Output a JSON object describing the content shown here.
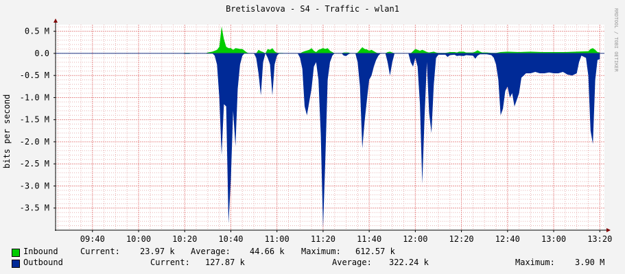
{
  "chart_data": {
    "type": "area",
    "title": "Bretislavova - S4 - Traffic - wlan1",
    "ylabel": "bits per second",
    "watermark": "RRDTOOL / TOBI OETIKER",
    "ylim": [
      -4.0,
      0.65
    ],
    "y_unit": "M",
    "y_ticks": [
      {
        "v": 0.5,
        "label": "0.5 M"
      },
      {
        "v": 0.0,
        "label": "0.0"
      },
      {
        "v": -0.5,
        "label": "-0.5 M"
      },
      {
        "v": -1.0,
        "label": "-1.0 M"
      },
      {
        "v": -1.5,
        "label": "-1.5 M"
      },
      {
        "v": -2.0,
        "label": "-2.0 M"
      },
      {
        "v": -2.5,
        "label": "-2.5 M"
      },
      {
        "v": -3.0,
        "label": "-3.0 M"
      },
      {
        "v": -3.5,
        "label": "-3.5 M"
      }
    ],
    "x_ticks": [
      "09:40",
      "10:00",
      "10:20",
      "10:40",
      "11:00",
      "11:20",
      "11:40",
      "12:00",
      "12:20",
      "12:40",
      "13:00",
      "13:20"
    ],
    "grid": true,
    "legend": "bottom",
    "colors": {
      "inbound": "#00cc00",
      "outbound": "#002a97",
      "grid": "#e8b0b0",
      "axis": "#000000",
      "plot_bg": "#ffffff"
    },
    "series": [
      {
        "name": "Inbound",
        "stats": {
          "current_label": "Current:",
          "current": "23.97 k",
          "average_label": "Average:",
          "average": "44.66 k",
          "maximum_label": "Maximum:",
          "maximum": "612.57 k"
        },
        "points": [
          [
            "10:19",
            0
          ],
          [
            "10:20",
            0.01
          ],
          [
            "10:22",
            0.01
          ],
          [
            "10:23",
            0
          ],
          [
            "10:29",
            0
          ],
          [
            "10:30",
            0.02
          ],
          [
            "10:32",
            0.04
          ],
          [
            "10:34",
            0.08
          ],
          [
            "10:35",
            0.15
          ],
          [
            "10:36",
            0.61
          ],
          [
            "10:37",
            0.32
          ],
          [
            "10:38",
            0.15
          ],
          [
            "10:39",
            0.12
          ],
          [
            "10:40",
            0.12
          ],
          [
            "10:41",
            0.08
          ],
          [
            "10:42",
            0.12
          ],
          [
            "10:43",
            0.11
          ],
          [
            "10:44",
            0.1
          ],
          [
            "10:45",
            0.1
          ],
          [
            "10:46",
            0.06
          ],
          [
            "10:47",
            0.02
          ],
          [
            "10:48",
            0
          ],
          [
            "10:51",
            0
          ],
          [
            "10:52",
            0.08
          ],
          [
            "10:53",
            0.05
          ],
          [
            "10:54",
            0.03
          ],
          [
            "10:55",
            0
          ],
          [
            "10:56",
            0.1
          ],
          [
            "10:57",
            0.08
          ],
          [
            "10:58",
            0.12
          ],
          [
            "10:59",
            0.05
          ],
          [
            "11:00",
            0.01
          ],
          [
            "11:02",
            0.01
          ],
          [
            "11:05",
            0
          ],
          [
            "11:10",
            0
          ],
          [
            "11:11",
            0.03
          ],
          [
            "11:12",
            0.05
          ],
          [
            "11:14",
            0.08
          ],
          [
            "11:15",
            0.12
          ],
          [
            "11:16",
            0.06
          ],
          [
            "11:17",
            0.03
          ],
          [
            "11:18",
            0.08
          ],
          [
            "11:19",
            0.1
          ],
          [
            "11:20",
            0.12
          ],
          [
            "11:21",
            0.1
          ],
          [
            "11:22",
            0.12
          ],
          [
            "11:23",
            0.06
          ],
          [
            "11:24",
            0.03
          ],
          [
            "11:25",
            0
          ],
          [
            "11:28",
            0
          ],
          [
            "11:29",
            0.02
          ],
          [
            "11:31",
            0.02
          ],
          [
            "11:32",
            0
          ],
          [
            "11:34",
            0
          ],
          [
            "11:35",
            0.02
          ],
          [
            "11:36",
            0.08
          ],
          [
            "11:37",
            0.14
          ],
          [
            "11:38",
            0.1
          ],
          [
            "11:39",
            0.09
          ],
          [
            "11:40",
            0.06
          ],
          [
            "11:41",
            0.08
          ],
          [
            "11:42",
            0.05
          ],
          [
            "11:43",
            0.02
          ],
          [
            "11:44",
            0
          ],
          [
            "11:47",
            0
          ],
          [
            "11:48",
            0.03
          ],
          [
            "11:49",
            0.04
          ],
          [
            "11:50",
            0.02
          ],
          [
            "11:51",
            0
          ],
          [
            "11:58",
            0
          ],
          [
            "11:59",
            0.05
          ],
          [
            "12:00",
            0.1
          ],
          [
            "12:01",
            0.08
          ],
          [
            "12:02",
            0.06
          ],
          [
            "12:03",
            0.08
          ],
          [
            "12:04",
            0.06
          ],
          [
            "12:05",
            0.03
          ],
          [
            "12:06",
            0.02
          ],
          [
            "12:07",
            0.03
          ],
          [
            "12:08",
            0.04
          ],
          [
            "12:09",
            0.02
          ],
          [
            "12:10",
            0.01
          ],
          [
            "12:13",
            0.01
          ],
          [
            "12:14",
            0.02
          ],
          [
            "12:15",
            0.03
          ],
          [
            "12:17",
            0.03
          ],
          [
            "12:18",
            0.02
          ],
          [
            "12:19",
            0.04
          ],
          [
            "12:21",
            0.04
          ],
          [
            "12:22",
            0.02
          ],
          [
            "12:25",
            0.02
          ],
          [
            "12:26",
            0.04
          ],
          [
            "12:27",
            0.07
          ],
          [
            "12:28",
            0.04
          ],
          [
            "12:29",
            0.02
          ],
          [
            "12:31",
            0.02
          ],
          [
            "12:33",
            0.01
          ],
          [
            "12:35",
            0.01
          ],
          [
            "12:36",
            0.02
          ],
          [
            "12:37",
            0.03
          ],
          [
            "12:40",
            0.04
          ],
          [
            "12:45",
            0.03
          ],
          [
            "12:50",
            0.04
          ],
          [
            "12:55",
            0.03
          ],
          [
            "13:00",
            0.03
          ],
          [
            "13:05",
            0.03
          ],
          [
            "13:10",
            0.04
          ],
          [
            "13:15",
            0.05
          ],
          [
            "13:16",
            0.1
          ],
          [
            "13:17",
            0.12
          ],
          [
            "13:18",
            0.08
          ],
          [
            "13:19",
            0.03
          ],
          [
            "13:20",
            0.02
          ]
        ]
      },
      {
        "name": "Outbound",
        "stats": {
          "current_label": "Current:",
          "current": "127.87 k",
          "average_label": "Average:",
          "average": "322.24 k",
          "maximum_label": "Maximum:",
          "maximum": "3.90 M"
        },
        "points": [
          [
            "10:19",
            0
          ],
          [
            "10:20",
            -0.01
          ],
          [
            "10:22",
            -0.01
          ],
          [
            "10:23",
            0
          ],
          [
            "10:32",
            0
          ],
          [
            "10:33",
            -0.05
          ],
          [
            "10:34",
            -0.25
          ],
          [
            "10:35",
            -1.0
          ],
          [
            "10:36",
            -2.3
          ],
          [
            "10:37",
            -1.15
          ],
          [
            "10:38",
            -1.2
          ],
          [
            "10:39",
            -3.85
          ],
          [
            "10:40",
            -2.85
          ],
          [
            "10:41",
            -1.3
          ],
          [
            "10:42",
            -2.1
          ],
          [
            "10:43",
            -0.8
          ],
          [
            "10:44",
            -0.25
          ],
          [
            "10:45",
            -0.05
          ],
          [
            "10:46",
            0
          ],
          [
            "10:50",
            0
          ],
          [
            "10:51",
            -0.1
          ],
          [
            "10:52",
            -0.45
          ],
          [
            "10:53",
            -0.95
          ],
          [
            "10:54",
            -0.2
          ],
          [
            "10:55",
            0
          ],
          [
            "10:56",
            -0.1
          ],
          [
            "10:57",
            -0.25
          ],
          [
            "10:58",
            -0.95
          ],
          [
            "10:59",
            -0.25
          ],
          [
            "11:00",
            -0.05
          ],
          [
            "11:01",
            0
          ],
          [
            "11:09",
            0
          ],
          [
            "11:10",
            -0.1
          ],
          [
            "11:11",
            -0.35
          ],
          [
            "11:12",
            -1.2
          ],
          [
            "11:13",
            -1.4
          ],
          [
            "11:14",
            -1.1
          ],
          [
            "11:15",
            -0.8
          ],
          [
            "11:16",
            -0.3
          ],
          [
            "11:17",
            -0.2
          ],
          [
            "11:18",
            -0.6
          ],
          [
            "11:19",
            -1.85
          ],
          [
            "11:20",
            -3.95
          ],
          [
            "11:21",
            -2.35
          ],
          [
            "11:22",
            -0.6
          ],
          [
            "11:23",
            -0.2
          ],
          [
            "11:24",
            -0.05
          ],
          [
            "11:25",
            0
          ],
          [
            "11:28",
            0
          ],
          [
            "11:29",
            -0.05
          ],
          [
            "11:30",
            -0.06
          ],
          [
            "11:31",
            -0.02
          ],
          [
            "11:32",
            0
          ],
          [
            "11:34",
            0
          ],
          [
            "11:35",
            -0.2
          ],
          [
            "11:36",
            -0.75
          ],
          [
            "11:37",
            -2.15
          ],
          [
            "11:38",
            -1.55
          ],
          [
            "11:39",
            -1.05
          ],
          [
            "11:40",
            -0.6
          ],
          [
            "11:41",
            -0.5
          ],
          [
            "11:42",
            -0.3
          ],
          [
            "11:43",
            -0.15
          ],
          [
            "11:44",
            -0.05
          ],
          [
            "11:45",
            0
          ],
          [
            "11:47",
            0
          ],
          [
            "11:48",
            -0.2
          ],
          [
            "11:49",
            -0.5
          ],
          [
            "11:50",
            -0.2
          ],
          [
            "11:51",
            0
          ],
          [
            "11:57",
            0
          ],
          [
            "11:58",
            -0.2
          ],
          [
            "11:59",
            -0.3
          ],
          [
            "12:00",
            -0.1
          ],
          [
            "12:01",
            -0.3
          ],
          [
            "12:02",
            -1.15
          ],
          [
            "12:03",
            -2.95
          ],
          [
            "12:04",
            -1.45
          ],
          [
            "12:05",
            -0.2
          ],
          [
            "12:06",
            -1.35
          ],
          [
            "12:07",
            -1.8
          ],
          [
            "12:08",
            -0.7
          ],
          [
            "12:09",
            -0.1
          ],
          [
            "12:10",
            -0.03
          ],
          [
            "12:13",
            -0.03
          ],
          [
            "12:14",
            -0.08
          ],
          [
            "12:15",
            -0.04
          ],
          [
            "12:17",
            -0.03
          ],
          [
            "12:18",
            -0.06
          ],
          [
            "12:19",
            -0.05
          ],
          [
            "12:21",
            -0.06
          ],
          [
            "12:22",
            -0.04
          ],
          [
            "12:25",
            -0.05
          ],
          [
            "12:26",
            -0.12
          ],
          [
            "12:27",
            -0.05
          ],
          [
            "12:28",
            -0.02
          ],
          [
            "12:31",
            -0.02
          ],
          [
            "12:33",
            -0.04
          ],
          [
            "12:34",
            -0.1
          ],
          [
            "12:35",
            -0.25
          ],
          [
            "12:36",
            -0.6
          ],
          [
            "12:37",
            -1.4
          ],
          [
            "12:38",
            -1.25
          ],
          [
            "12:39",
            -0.85
          ],
          [
            "12:40",
            -0.75
          ],
          [
            "12:41",
            -1.0
          ],
          [
            "12:42",
            -0.9
          ],
          [
            "12:43",
            -1.2
          ],
          [
            "12:44",
            -1.05
          ],
          [
            "12:45",
            -0.9
          ],
          [
            "12:46",
            -0.55
          ],
          [
            "12:47",
            -0.5
          ],
          [
            "12:48",
            -0.45
          ],
          [
            "12:50",
            -0.45
          ],
          [
            "12:52",
            -0.42
          ],
          [
            "12:54",
            -0.45
          ],
          [
            "12:56",
            -0.45
          ],
          [
            "12:58",
            -0.43
          ],
          [
            "13:00",
            -0.45
          ],
          [
            "13:02",
            -0.45
          ],
          [
            "13:04",
            -0.42
          ],
          [
            "13:06",
            -0.48
          ],
          [
            "13:08",
            -0.5
          ],
          [
            "13:10",
            -0.45
          ],
          [
            "13:11",
            -0.2
          ],
          [
            "13:12",
            -0.05
          ],
          [
            "13:14",
            -0.1
          ],
          [
            "13:15",
            -0.5
          ],
          [
            "13:16",
            -1.75
          ],
          [
            "13:17",
            -2.05
          ],
          [
            "13:18",
            -0.6
          ],
          [
            "13:19",
            -0.15
          ],
          [
            "13:20",
            -0.13
          ]
        ]
      }
    ]
  }
}
